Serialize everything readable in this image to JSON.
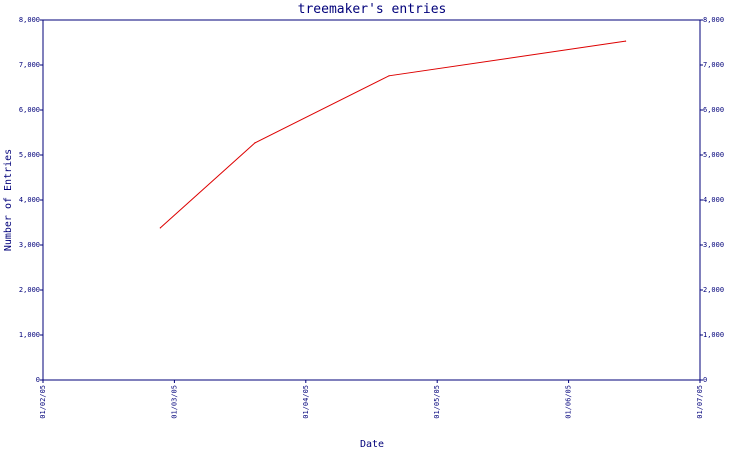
{
  "chart_data": {
    "type": "line",
    "title": "treemaker's entries",
    "xlabel": "Date",
    "ylabel": "Number of Entries",
    "x_ticks": [
      "01/02/05",
      "01/03/05",
      "01/04/05",
      "01/05/05",
      "01/06/05",
      "01/07/05"
    ],
    "y_ticks": [
      "0",
      "1,000",
      "2,000",
      "3,000",
      "4,000",
      "5,000",
      "6,000",
      "7,000",
      "8,000"
    ],
    "ylim": [
      0,
      8000
    ],
    "xlim": [
      "2005-02-01",
      "2005-07-01"
    ],
    "grid": false,
    "series": [
      {
        "color": "#dd0000",
        "points": [
          {
            "x": "2005-02-26",
            "y": 3380
          },
          {
            "x": "2005-03-20",
            "y": 5270
          },
          {
            "x": "2005-04-20",
            "y": 6760
          },
          {
            "x": "2005-06-14",
            "y": 7530
          }
        ]
      }
    ]
  },
  "colors": {
    "axis": "#00007a",
    "text": "#00007a",
    "line": "#dd0000",
    "background": "#ffffff"
  }
}
